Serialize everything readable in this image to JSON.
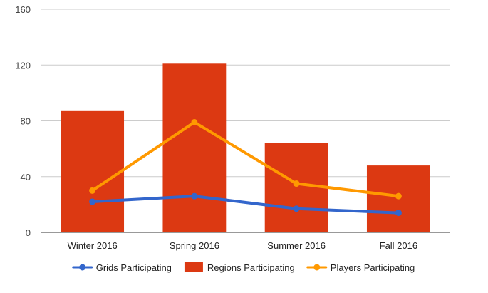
{
  "chart_data": {
    "type": "bar",
    "categories": [
      "Winter 2016",
      "Spring 2016",
      "Summer 2016",
      "Fall 2016"
    ],
    "ylim": [
      0,
      160
    ],
    "yticks": [
      0,
      40,
      80,
      120,
      160
    ],
    "grid": true,
    "legend_position": "bottom",
    "title": "",
    "xlabel": "",
    "ylabel": "",
    "bars": [
      {
        "name": "Regions Participating",
        "color": "#dc3912",
        "values": [
          87,
          121,
          64,
          48
        ]
      }
    ],
    "lines": [
      {
        "name": "Grids Participating",
        "color": "#3366cc",
        "values": [
          22,
          26,
          17,
          14
        ]
      },
      {
        "name": "Players Participating",
        "color": "#ff9900",
        "values": [
          30,
          79,
          35,
          26
        ]
      }
    ],
    "legend": [
      {
        "name": "Grids Participating",
        "kind": "line",
        "color": "#3366cc"
      },
      {
        "name": "Regions Participating",
        "kind": "bar",
        "color": "#dc3912"
      },
      {
        "name": "Players Participating",
        "kind": "line",
        "color": "#ff9900"
      }
    ]
  }
}
